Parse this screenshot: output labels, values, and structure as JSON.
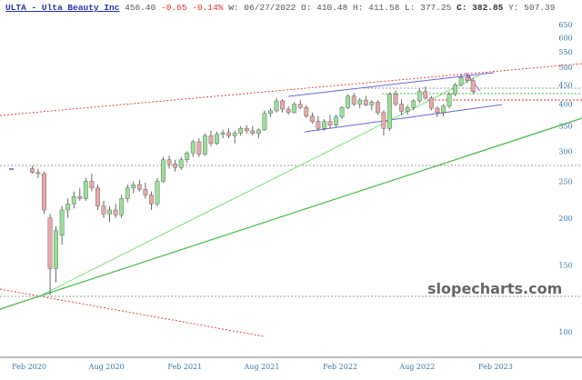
{
  "header": {
    "symbol": "ULTA - Ulta Beauty Inc",
    "last": "456.40",
    "change": "-0.65",
    "change_pct": "-0.14%",
    "date_label": "W: 06/27/2022",
    "open_label": "O: 410.48",
    "high_label": "H: 411.58",
    "low_label": "L: 377.25",
    "close_label": "C: 382.85",
    "y_label": "Y: 507.39"
  },
  "watermark": "slopecharts.com",
  "colors": {
    "up": "#98e098",
    "down": "#e8a8a8",
    "wick": "#444444",
    "axis_text": "#3a78a8"
  },
  "chart_data": {
    "type": "candlestick",
    "interval": "2W",
    "y_scale": "log",
    "ylim": [
      90,
      680
    ],
    "y_ticks": [
      100,
      150,
      200,
      250,
      300,
      350,
      400,
      450,
      500,
      550,
      600,
      650
    ],
    "x_ticks": [
      {
        "date": "2020-02-01",
        "label": "Feb 2020"
      },
      {
        "date": "2020-08-01",
        "label": "Aug 2020"
      },
      {
        "date": "2021-02-01",
        "label": "Feb 2021"
      },
      {
        "date": "2021-08-01",
        "label": "Aug 2021"
      },
      {
        "date": "2022-02-01",
        "label": "Feb 2022"
      },
      {
        "date": "2022-08-01",
        "label": "Aug 2022"
      },
      {
        "date": "2023-02-01",
        "label": "Feb 2023"
      }
    ],
    "candles": [
      [
        "2020-01-20",
        270,
        275,
        262,
        264
      ],
      [
        "2020-02-03",
        264,
        270,
        255,
        262
      ],
      [
        "2020-02-17",
        262,
        265,
        205,
        210
      ],
      [
        "2020-03-02",
        200,
        205,
        125,
        147
      ],
      [
        "2020-03-16",
        147,
        190,
        135,
        185
      ],
      [
        "2020-03-30",
        180,
        215,
        170,
        210
      ],
      [
        "2020-04-13",
        210,
        225,
        200,
        218
      ],
      [
        "2020-04-27",
        218,
        235,
        212,
        228
      ],
      [
        "2020-05-11",
        228,
        240,
        222,
        225
      ],
      [
        "2020-05-25",
        225,
        255,
        222,
        250
      ],
      [
        "2020-06-08",
        250,
        262,
        235,
        240
      ],
      [
        "2020-06-22",
        240,
        245,
        210,
        215
      ],
      [
        "2020-07-06",
        215,
        222,
        200,
        205
      ],
      [
        "2020-07-20",
        205,
        215,
        195,
        210
      ],
      [
        "2020-08-03",
        210,
        218,
        200,
        204
      ],
      [
        "2020-08-17",
        204,
        230,
        200,
        225
      ],
      [
        "2020-08-31",
        225,
        245,
        220,
        240
      ],
      [
        "2020-09-14",
        240,
        250,
        232,
        245
      ],
      [
        "2020-09-28",
        245,
        252,
        235,
        238
      ],
      [
        "2020-10-12",
        238,
        248,
        225,
        230
      ],
      [
        "2020-10-26",
        230,
        235,
        210,
        218
      ],
      [
        "2020-11-09",
        218,
        255,
        215,
        250
      ],
      [
        "2020-11-23",
        250,
        290,
        248,
        285
      ],
      [
        "2020-12-07",
        285,
        292,
        270,
        278
      ],
      [
        "2020-12-21",
        278,
        285,
        265,
        272
      ],
      [
        "2021-01-04",
        272,
        290,
        268,
        285
      ],
      [
        "2021-01-18",
        285,
        300,
        280,
        297
      ],
      [
        "2021-02-01",
        297,
        322,
        290,
        318
      ],
      [
        "2021-02-15",
        318,
        325,
        290,
        295
      ],
      [
        "2021-03-01",
        295,
        335,
        292,
        330
      ],
      [
        "2021-03-15",
        330,
        340,
        310,
        315
      ],
      [
        "2021-03-29",
        315,
        338,
        312,
        333
      ],
      [
        "2021-04-12",
        333,
        342,
        325,
        336
      ],
      [
        "2021-04-26",
        336,
        345,
        325,
        330
      ],
      [
        "2021-05-10",
        330,
        340,
        315,
        335
      ],
      [
        "2021-05-24",
        335,
        350,
        330,
        345
      ],
      [
        "2021-06-07",
        345,
        352,
        335,
        340
      ],
      [
        "2021-06-21",
        340,
        350,
        330,
        335
      ],
      [
        "2021-07-05",
        335,
        345,
        325,
        342
      ],
      [
        "2021-07-19",
        342,
        385,
        340,
        378
      ],
      [
        "2021-08-02",
        378,
        390,
        370,
        384
      ],
      [
        "2021-08-16",
        384,
        415,
        380,
        408
      ],
      [
        "2021-08-30",
        408,
        412,
        380,
        388
      ],
      [
        "2021-09-13",
        388,
        395,
        375,
        380
      ],
      [
        "2021-09-27",
        380,
        405,
        378,
        400
      ],
      [
        "2021-10-11",
        400,
        410,
        388,
        392
      ],
      [
        "2021-10-25",
        392,
        398,
        368,
        372
      ],
      [
        "2021-11-08",
        372,
        380,
        355,
        360
      ],
      [
        "2021-11-22",
        360,
        372,
        340,
        345
      ],
      [
        "2021-12-06",
        345,
        365,
        340,
        360
      ],
      [
        "2021-12-20",
        360,
        375,
        345,
        352
      ],
      [
        "2022-01-03",
        352,
        375,
        348,
        370
      ],
      [
        "2022-01-17",
        370,
        395,
        365,
        392
      ],
      [
        "2022-01-31",
        392,
        425,
        388,
        420
      ],
      [
        "2022-02-14",
        420,
        428,
        395,
        400
      ],
      [
        "2022-02-28",
        400,
        415,
        390,
        410
      ],
      [
        "2022-03-14",
        410,
        420,
        395,
        398
      ],
      [
        "2022-03-28",
        398,
        410,
        385,
        405
      ],
      [
        "2022-04-11",
        405,
        410,
        375,
        380
      ],
      [
        "2022-04-25",
        380,
        385,
        330,
        345
      ],
      [
        "2022-05-09",
        345,
        430,
        340,
        425
      ],
      [
        "2022-05-23",
        425,
        435,
        395,
        400
      ],
      [
        "2022-06-06",
        400,
        412,
        375,
        383
      ],
      [
        "2022-06-20",
        383,
        398,
        375,
        392
      ],
      [
        "2022-07-04",
        392,
        412,
        385,
        408
      ],
      [
        "2022-07-18",
        408,
        440,
        402,
        432
      ],
      [
        "2022-08-01",
        432,
        445,
        410,
        415
      ],
      [
        "2022-08-15",
        415,
        420,
        385,
        390
      ],
      [
        "2022-08-29",
        390,
        395,
        370,
        380
      ],
      [
        "2022-09-12",
        380,
        400,
        372,
        395
      ],
      [
        "2022-09-26",
        395,
        430,
        390,
        425
      ],
      [
        "2022-10-10",
        425,
        455,
        420,
        450
      ],
      [
        "2022-10-24",
        450,
        478,
        445,
        470
      ],
      [
        "2022-11-07",
        470,
        480,
        455,
        462
      ],
      [
        "2022-11-21",
        462,
        470,
        425,
        432
      ]
    ]
  }
}
